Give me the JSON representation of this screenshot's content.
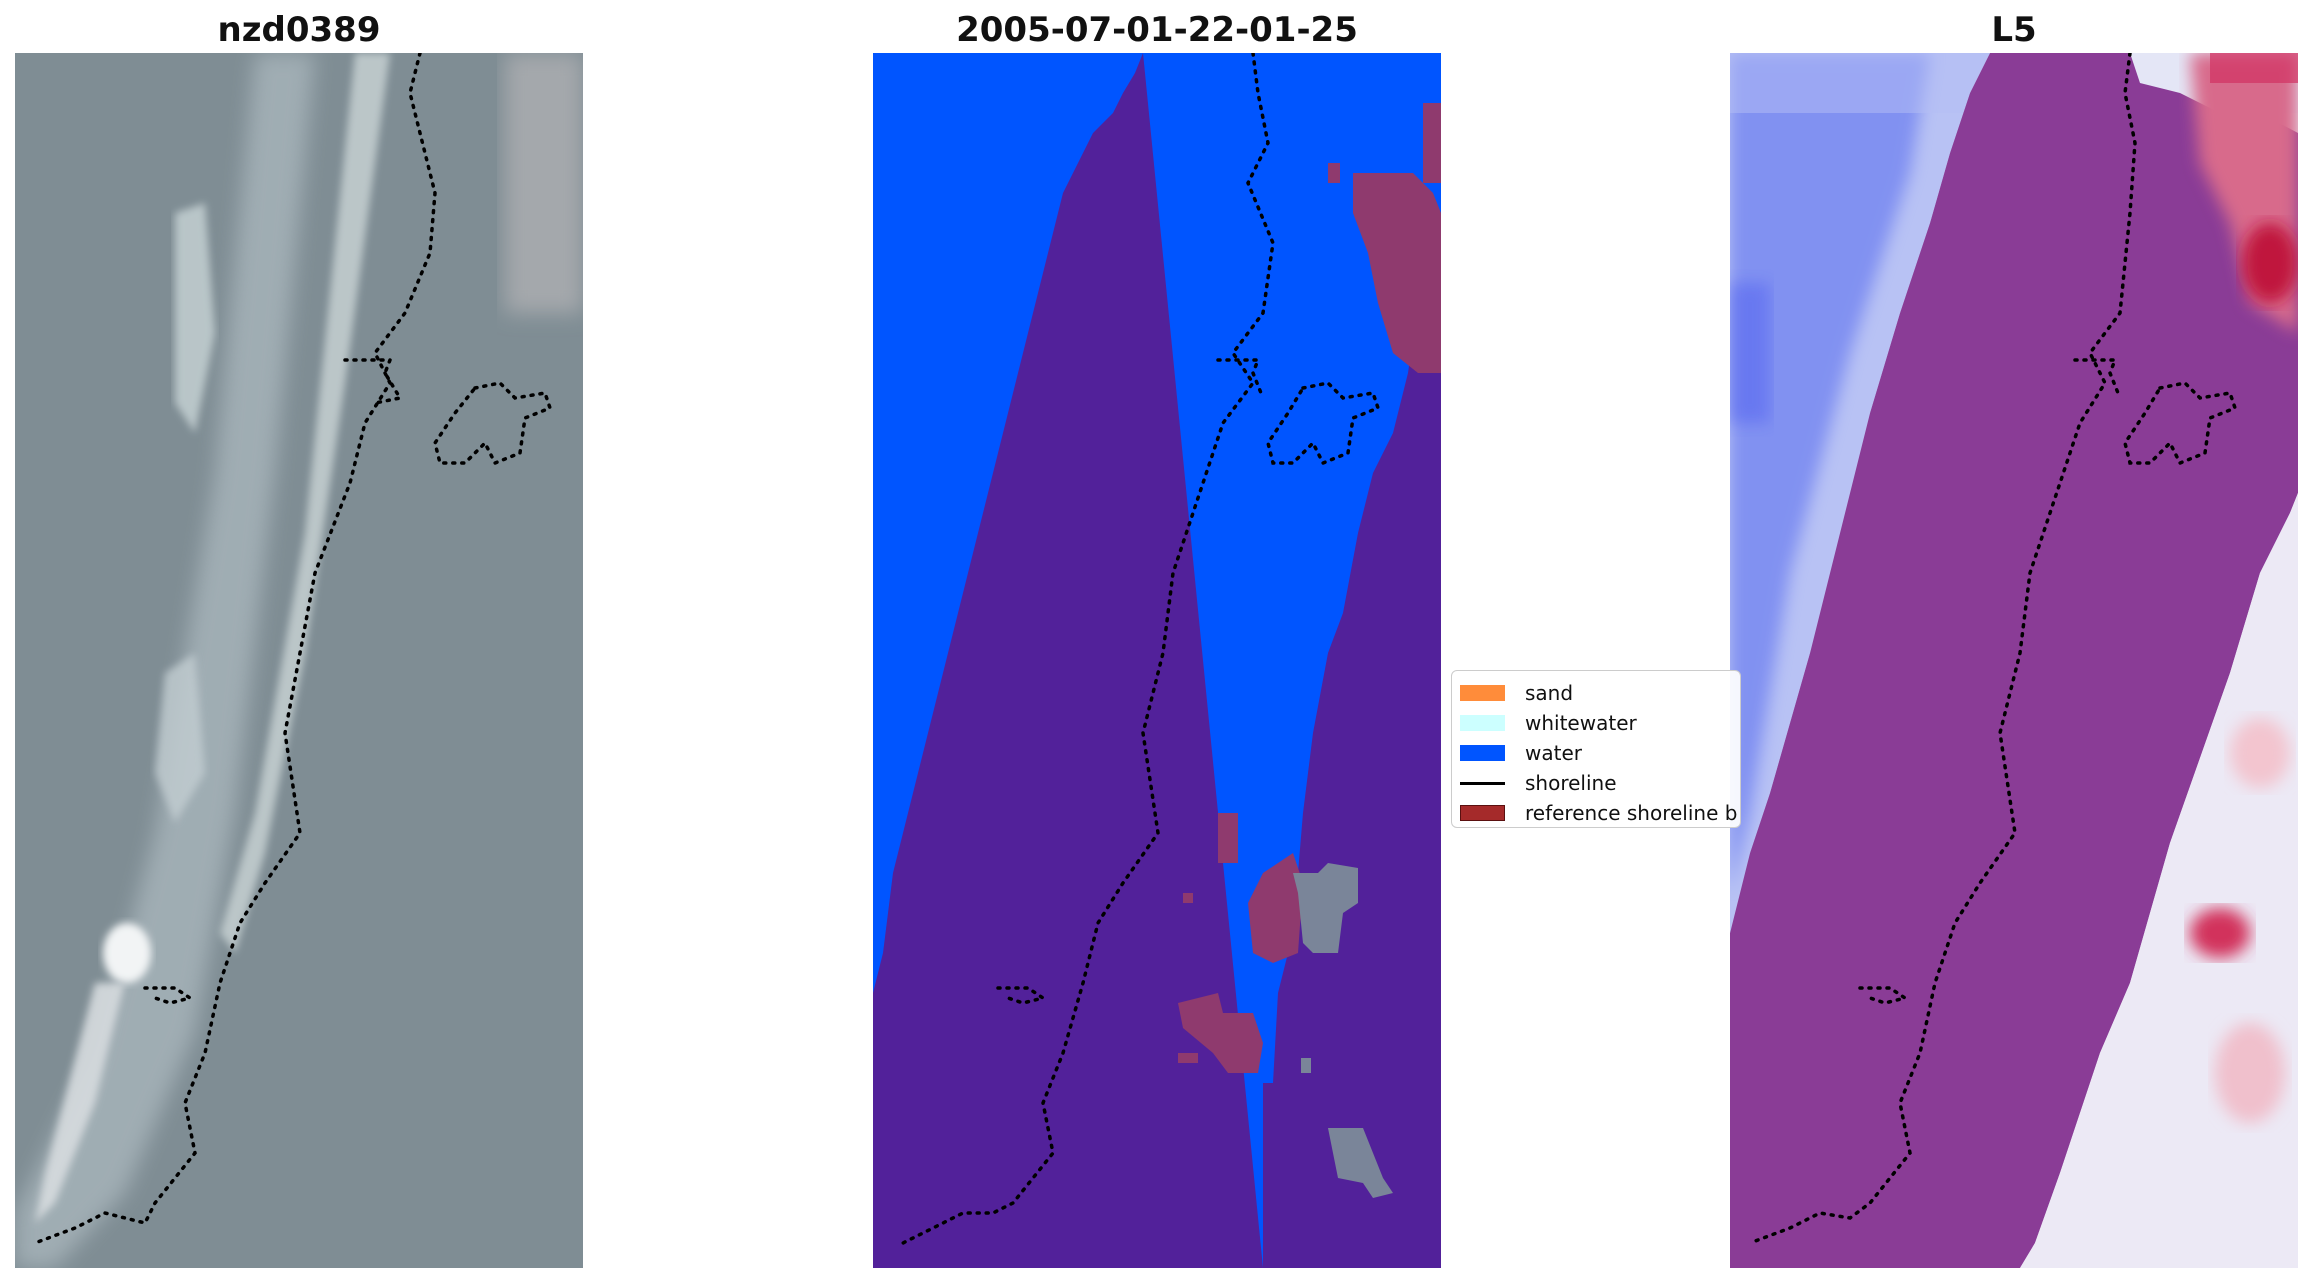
{
  "panels": [
    {
      "title": "nzd0389"
    },
    {
      "title": "2005-07-01-22-01-25"
    },
    {
      "title": "L5"
    }
  ],
  "legend": {
    "items": [
      {
        "label": "sand",
        "color": "#ff8c3a",
        "kind": "patch"
      },
      {
        "label": "whitewater",
        "color": "#ccffff",
        "kind": "patch"
      },
      {
        "label": "water",
        "color": "#0055ff",
        "kind": "patch"
      },
      {
        "label": "shoreline",
        "color": "#000000",
        "kind": "line"
      },
      {
        "label": "reference shoreline b",
        "color": "#a52a2a",
        "kind": "patch"
      }
    ]
  },
  "colors": {
    "rgb_background": "#7f8d94",
    "water": "#0055ff",
    "land_class": "#52219a",
    "highlight_class": "#8f3a6e",
    "cloud_class": "#7a8599",
    "index_blue": "#5a6cf2",
    "index_red": "#c21a48",
    "index_band": "#8a3c96"
  }
}
